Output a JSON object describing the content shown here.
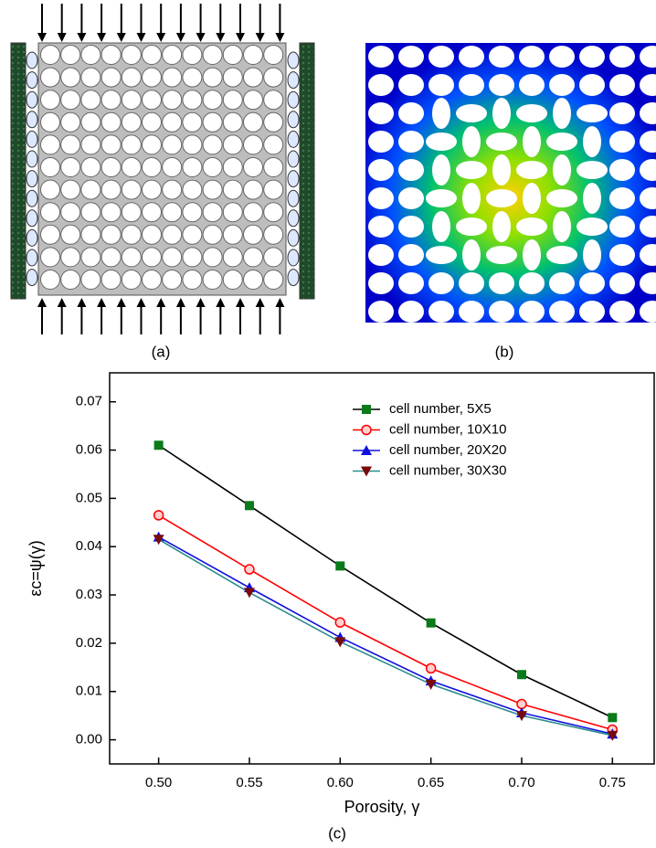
{
  "captions": [
    "(a)",
    "(b)",
    "(c)"
  ],
  "chart_data": {
    "type": "line",
    "x_label": "Porosity, γ",
    "y_label": "εc=ψ(γ)",
    "x": [
      0.5,
      0.55,
      0.6,
      0.65,
      0.7,
      0.75
    ],
    "series": [
      {
        "name": "cell number, 5X5",
        "color": "#000000",
        "marker": "square",
        "marker_color": "#0b7a1a",
        "values": [
          0.061,
          0.0485,
          0.036,
          0.0242,
          0.0135,
          0.0046
        ]
      },
      {
        "name": "cell number, 10X10",
        "color": "#ff0000",
        "marker": "circle",
        "marker_color": "#ff0000",
        "values": [
          0.0465,
          0.0353,
          0.0243,
          0.0148,
          0.0074,
          0.0021
        ]
      },
      {
        "name": "cell number, 20X20",
        "color": "#1010e0",
        "marker": "triangle-up",
        "marker_color": "#1010e0",
        "values": [
          0.042,
          0.0315,
          0.0212,
          0.0122,
          0.0056,
          0.0012
        ]
      },
      {
        "name": "cell number, 30X30",
        "color": "#2a8c8c",
        "marker": "triangle-down",
        "marker_color": "#7a0a0a",
        "values": [
          0.0415,
          0.0305,
          0.0203,
          0.0115,
          0.005,
          0.0009
        ]
      }
    ],
    "xlim": [
      0.473,
      0.773
    ],
    "ylim": [
      -0.005,
      0.076
    ],
    "xticks": [
      {
        "value": 0.5,
        "label": "0.50"
      },
      {
        "value": 0.55,
        "label": "0.55"
      },
      {
        "value": 0.6,
        "label": "0.60"
      },
      {
        "value": 0.65,
        "label": "0.65"
      },
      {
        "value": 0.7,
        "label": "0.70"
      },
      {
        "value": 0.75,
        "label": "0.75"
      }
    ],
    "yticks": [
      {
        "value": 0,
        "label": "0.00"
      },
      0.01,
      0.02,
      0.03,
      0.04,
      0.05,
      0.06,
      0.07
    ],
    "legend": "upper right",
    "grid": false
  }
}
